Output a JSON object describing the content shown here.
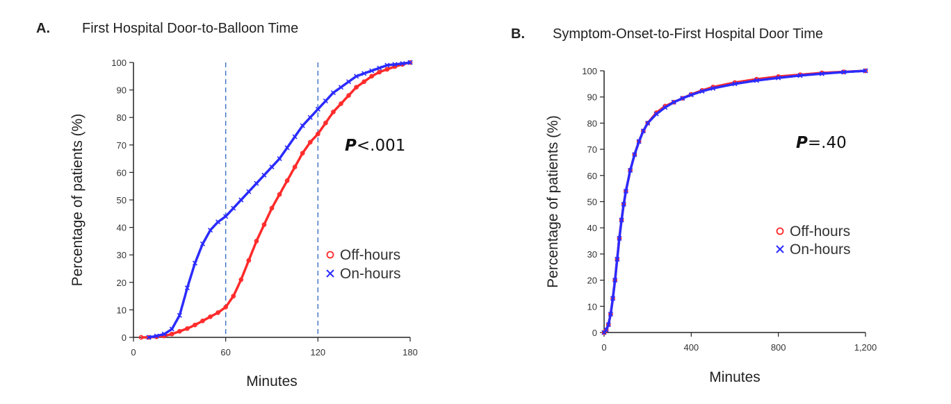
{
  "chart_data": [
    {
      "type": "line",
      "panel_label": "A.",
      "title": "First Hospital Door-to-Balloon Time",
      "xlabel": "Minutes",
      "ylabel": "Percentage of patients (%)",
      "xlim": [
        0,
        180
      ],
      "ylim": [
        0,
        100
      ],
      "x_ticks": [
        0,
        60,
        120,
        180
      ],
      "x_tick_labels": [
        "0",
        "60",
        "120",
        "180"
      ],
      "y_ticks": [
        0,
        10,
        20,
        30,
        40,
        50,
        60,
        70,
        80,
        90,
        100
      ],
      "reference_lines_x": [
        60,
        120
      ],
      "annotation": {
        "italic": "P",
        "rest": "<.001"
      },
      "legend": {
        "position": "middle-right",
        "entries": [
          "Off-hours",
          "On-hours"
        ]
      },
      "series": [
        {
          "name": "Off-hours",
          "marker": "circle",
          "color": "#ff2a2a",
          "x": [
            5,
            10,
            15,
            20,
            25,
            30,
            35,
            40,
            45,
            50,
            55,
            60,
            65,
            70,
            75,
            80,
            85,
            90,
            95,
            100,
            105,
            110,
            115,
            120,
            125,
            130,
            135,
            140,
            145,
            150,
            155,
            160,
            165,
            170,
            175,
            180
          ],
          "y": [
            0,
            0,
            0.2,
            0.5,
            1.2,
            2.2,
            3.2,
            4.5,
            6,
            7.5,
            9,
            11,
            15,
            21,
            28,
            35,
            41,
            47,
            52,
            57,
            62,
            67,
            71,
            74,
            78,
            82,
            85,
            88,
            91,
            93,
            95,
            96.5,
            97.5,
            98.5,
            99.3,
            100
          ]
        },
        {
          "name": "On-hours",
          "marker": "x",
          "color": "#2b2bff",
          "x": [
            10,
            15,
            20,
            25,
            30,
            35,
            40,
            45,
            50,
            55,
            60,
            65,
            70,
            75,
            80,
            85,
            90,
            95,
            100,
            105,
            110,
            115,
            120,
            125,
            130,
            135,
            140,
            145,
            150,
            155,
            160,
            165,
            170,
            175,
            180
          ],
          "y": [
            0,
            0.5,
            1.2,
            3,
            8,
            18,
            27,
            34,
            39,
            42,
            44,
            47,
            50,
            53,
            56,
            59,
            62,
            65,
            69,
            73,
            77,
            80,
            83,
            86,
            89,
            91,
            93,
            95,
            96,
            97,
            98,
            99,
            99.3,
            99.6,
            100
          ]
        }
      ]
    },
    {
      "type": "line",
      "panel_label": "B.",
      "title": "Symptom-Onset-to-First Hospital Door Time",
      "xlabel": "Minutes",
      "ylabel": "Percentage of patients (%)",
      "xlim": [
        0,
        1200
      ],
      "ylim": [
        0,
        100
      ],
      "x_ticks": [
        0,
        400,
        800,
        1200
      ],
      "x_tick_labels": [
        "0",
        "400",
        "800",
        "1,200"
      ],
      "y_ticks": [
        0,
        10,
        20,
        30,
        40,
        50,
        60,
        70,
        80,
        90,
        100
      ],
      "reference_lines_x": [],
      "annotation": {
        "italic": "P",
        "rest": "=.40"
      },
      "legend": {
        "position": "middle-right",
        "entries": [
          "Off-hours",
          "On-hours"
        ]
      },
      "series": [
        {
          "name": "Off-hours",
          "marker": "circle",
          "color": "#ff2a2a",
          "x": [
            0,
            10,
            20,
            30,
            40,
            50,
            60,
            70,
            80,
            90,
            100,
            120,
            140,
            160,
            180,
            200,
            240,
            280,
            320,
            360,
            400,
            450,
            500,
            600,
            700,
            800,
            900,
            1000,
            1100,
            1200
          ],
          "y": [
            0,
            1,
            3,
            7,
            13,
            20,
            28,
            36,
            43,
            49,
            54,
            62,
            68,
            73,
            77,
            80,
            84,
            86.5,
            88,
            89.5,
            91,
            92.5,
            93.8,
            95.5,
            96.8,
            97.8,
            98.5,
            99.2,
            99.6,
            100
          ]
        },
        {
          "name": "On-hours",
          "marker": "x",
          "color": "#2b2bff",
          "x": [
            0,
            10,
            20,
            30,
            40,
            50,
            60,
            70,
            80,
            90,
            100,
            120,
            140,
            160,
            180,
            200,
            240,
            280,
            320,
            360,
            400,
            450,
            500,
            600,
            700,
            800,
            900,
            1000,
            1100,
            1200
          ],
          "y": [
            0,
            1,
            3,
            7,
            13,
            20,
            28,
            36,
            43,
            49,
            54,
            62,
            68,
            73,
            77,
            80,
            83.5,
            86,
            88,
            89.5,
            90.8,
            92.2,
            93.3,
            95,
            96.3,
            97.3,
            98.2,
            98.9,
            99.5,
            100
          ]
        }
      ]
    }
  ]
}
